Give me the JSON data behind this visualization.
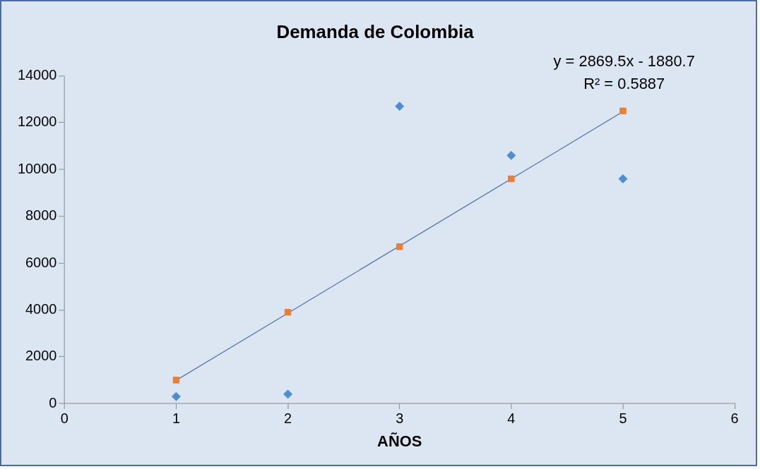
{
  "chart_data": {
    "type": "scatter",
    "title": "Demanda de Colombia",
    "xlabel": "AÑOS",
    "xlim": [
      0,
      6
    ],
    "xticks": [
      0,
      1,
      2,
      3,
      4,
      5,
      6
    ],
    "ylim": [
      0,
      14000
    ],
    "yticks": [
      0,
      2000,
      4000,
      6000,
      8000,
      10000,
      12000,
      14000
    ],
    "grid": false,
    "legend": false,
    "series": [
      {
        "type": "scatter",
        "marker": "diamond",
        "color": "#4a8fd4",
        "x": [
          1,
          2,
          3,
          4,
          5
        ],
        "values": [
          300,
          400,
          12700,
          10600,
          9600
        ]
      },
      {
        "type": "scatter",
        "marker": "square",
        "color": "#ed7d31",
        "x": [
          1,
          2,
          3,
          4,
          5
        ],
        "values": [
          1000,
          3900,
          6700,
          9600,
          12500
        ]
      },
      {
        "type": "line",
        "marker": "none",
        "color": "#4a6da8",
        "x": [
          1,
          5
        ],
        "values": [
          990,
          12470
        ]
      }
    ],
    "annotations": [
      "y = 2869.5x - 1880.7",
      "R² = 0.5887"
    ]
  }
}
